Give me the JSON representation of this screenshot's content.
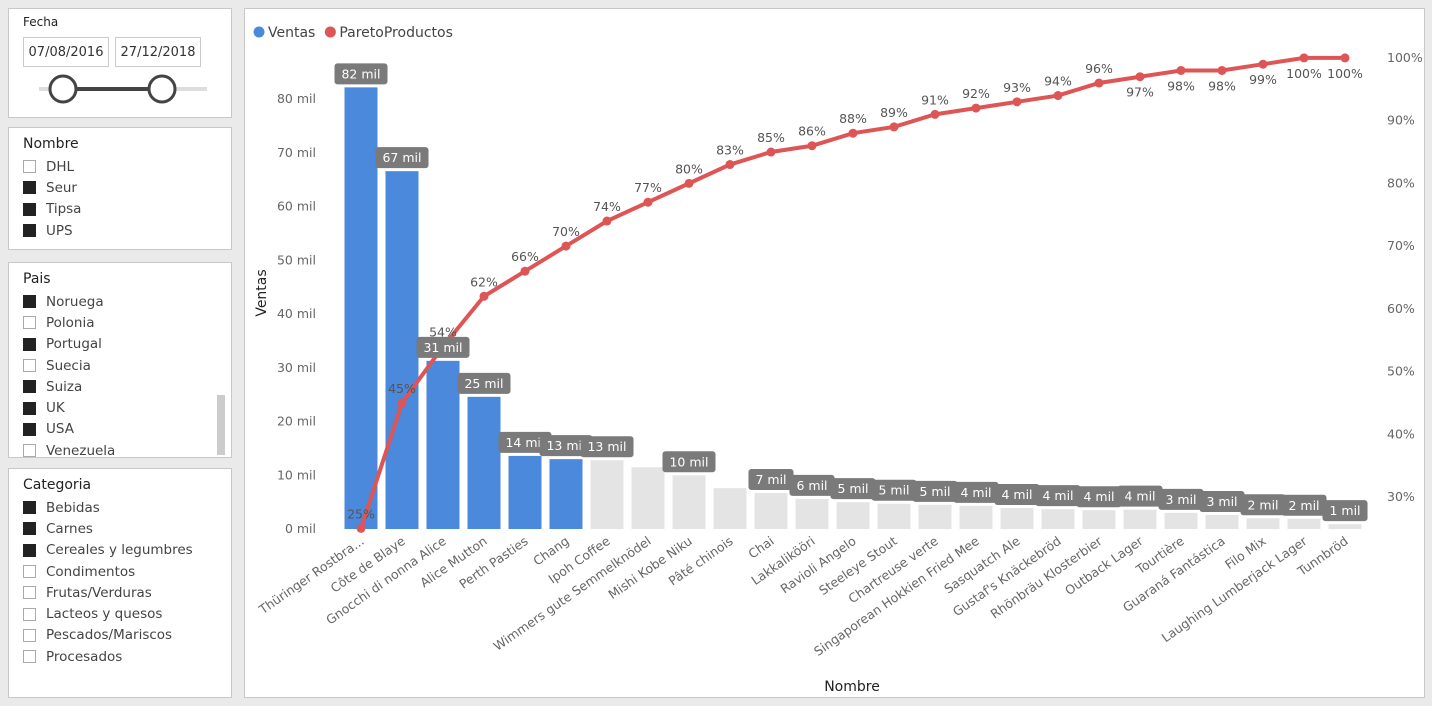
{
  "slicers": {
    "fecha": {
      "title": "Fecha",
      "start": "07/08/2016",
      "end": "27/12/2018"
    },
    "nombre": {
      "title": "Nombre",
      "items": [
        {
          "label": "DHL",
          "checked": false
        },
        {
          "label": "Seur",
          "checked": true
        },
        {
          "label": "Tipsa",
          "checked": true
        },
        {
          "label": "UPS",
          "checked": true
        }
      ]
    },
    "pais": {
      "title": "Pais",
      "items": [
        {
          "label": "Noruega",
          "checked": true
        },
        {
          "label": "Polonia",
          "checked": false
        },
        {
          "label": "Portugal",
          "checked": true
        },
        {
          "label": "Suecia",
          "checked": false
        },
        {
          "label": "Suiza",
          "checked": true
        },
        {
          "label": "UK",
          "checked": true
        },
        {
          "label": "USA",
          "checked": true
        },
        {
          "label": "Venezuela",
          "checked": false
        }
      ]
    },
    "categoria": {
      "title": "Categoria",
      "items": [
        {
          "label": "Bebidas",
          "checked": true
        },
        {
          "label": "Carnes",
          "checked": true
        },
        {
          "label": "Cereales y legumbres",
          "checked": true
        },
        {
          "label": "Condimentos",
          "checked": false
        },
        {
          "label": "Frutas/Verduras",
          "checked": false
        },
        {
          "label": "Lacteos y quesos",
          "checked": false
        },
        {
          "label": "Pescados/Mariscos",
          "checked": false
        },
        {
          "label": "Procesados",
          "checked": false
        }
      ]
    }
  },
  "chart_data": {
    "type": "bar",
    "x_label": "Nombre",
    "y_label": "Ventas",
    "categories": [
      "Thüringer Rostbra...",
      "Côte de Blaye",
      "Gnocchi di nonna Alice",
      "Alice Mutton",
      "Perth Pasties",
      "Chang",
      "Ipoh Coffee",
      "Wimmers gute Semmelknödel",
      "Mishi Kobe Niku",
      "Pâté chinois",
      "Chai",
      "Lakkalikööri",
      "Ravioli Angelo",
      "Steeleye Stout",
      "Chartreuse verte",
      "Singaporean Hokkien Fried Mee",
      "Sasquatch Ale",
      "Gustaf's Knäckebröd",
      "Rhönbräu Klosterbier",
      "Outback Lager",
      "Tourtière",
      "Guaraná Fantástica",
      "Filo Mix",
      "Laughing Lumberjack Lager",
      "Tunnbröd"
    ],
    "series": [
      {
        "name": "Ventas",
        "color": "#4a89dc",
        "values": [
          82.2,
          66.6,
          31.3,
          24.6,
          13.6,
          13.0,
          12.8,
          11.5,
          10.0,
          7.6,
          6.7,
          5.6,
          5.0,
          4.7,
          4.5,
          4.3,
          3.9,
          3.7,
          3.5,
          3.6,
          3.0,
          2.6,
          2.0,
          1.9,
          0.9
        ],
        "value_labels": [
          "82 mil",
          "67 mil",
          "31 mil",
          "25 mil",
          "14 mil",
          "13 mil",
          "13 mil",
          null,
          "10 mil",
          null,
          "7 mil",
          "6 mil",
          "5 mil",
          "5 mil",
          "5 mil",
          "4 mil",
          "4 mil",
          "4 mil",
          "4 mil",
          "4 mil",
          "3 mil",
          "3 mil",
          "2 mil",
          "2 mil",
          "1 mil"
        ],
        "bar_colors": [
          "#4a89dc",
          "#4a89dc",
          "#4a89dc",
          "#4a89dc",
          "#4a89dc",
          "#4a89dc",
          "#e4e4e4",
          "#e4e4e4",
          "#e4e4e4",
          "#e4e4e4",
          "#e4e4e4",
          "#e4e4e4",
          "#e4e4e4",
          "#e4e4e4",
          "#e4e4e4",
          "#e4e4e4",
          "#e4e4e4",
          "#e4e4e4",
          "#e4e4e4",
          "#e4e4e4",
          "#e4e4e4",
          "#e4e4e4",
          "#e4e4e4",
          "#e4e4e4",
          "#e4e4e4"
        ]
      },
      {
        "name": "ParetoProductos",
        "color": "#dd5555",
        "type": "line",
        "axis": "y2",
        "values": [
          25,
          45,
          54,
          62,
          66,
          70,
          74,
          77,
          80,
          83,
          85,
          86,
          88,
          89,
          91,
          92,
          93,
          94,
          96,
          97,
          98,
          98,
          99,
          100,
          100
        ],
        "value_labels": [
          "25%",
          "45%",
          "54%",
          "62%",
          "66%",
          "70%",
          "74%",
          "77%",
          "80%",
          "83%",
          "85%",
          "86%",
          "88%",
          "89%",
          "91%",
          "92%",
          "93%",
          "94%",
          "96%",
          "97%",
          "98%",
          "98%",
          "99%",
          "100%",
          "100%"
        ]
      }
    ],
    "ylim": [
      0,
      89.9
    ],
    "yticks": [
      {
        "value": 0,
        "label": "0 mil"
      },
      {
        "value": 10,
        "label": "10 mil"
      },
      {
        "value": 20,
        "label": "20 mil"
      },
      {
        "value": 30,
        "label": "30 mil"
      },
      {
        "value": 40,
        "label": "40 mil"
      },
      {
        "value": 50,
        "label": "50 mil"
      },
      {
        "value": 60,
        "label": "60 mil"
      },
      {
        "value": 70,
        "label": "70 mil"
      },
      {
        "value": 80,
        "label": "80 mil"
      }
    ],
    "y2lim": [
      24.9,
      101.9
    ],
    "y2ticks": [
      {
        "value": 30,
        "label": "30%"
      },
      {
        "value": 40,
        "label": "40%"
      },
      {
        "value": 50,
        "label": "50%"
      },
      {
        "value": 60,
        "label": "60%"
      },
      {
        "value": 70,
        "label": "70%"
      },
      {
        "value": 80,
        "label": "80%"
      },
      {
        "value": 90,
        "label": "90%"
      },
      {
        "value": 100,
        "label": "100%"
      }
    ],
    "legend": "top-left"
  }
}
